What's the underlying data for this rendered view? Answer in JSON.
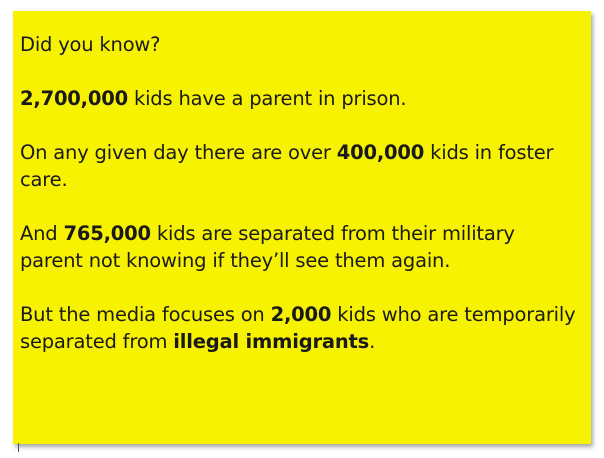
{
  "heading": "Did you know?",
  "fact1": {
    "number": "2,700,000",
    "text": " kids have a parent in prison."
  },
  "fact2": {
    "line1_pre": "On any given day there are over ",
    "number": "400,000",
    "line1_post": " kids in foster",
    "line2": "care."
  },
  "fact3": {
    "line1_pre": "And ",
    "number": "765,000",
    "line1_post": " kids are separated from their military",
    "line2": "parent not knowing if they’ll see them again."
  },
  "fact4": {
    "line1_pre": "But the media focuses on ",
    "number": "2,000",
    "line1_post": " kids who are temporarily",
    "line2_pre": "separated from ",
    "emphasis": "illegal immigrants",
    "line2_post": "."
  },
  "colors": {
    "background": "#f7f202",
    "text": "#1a1a1a"
  }
}
